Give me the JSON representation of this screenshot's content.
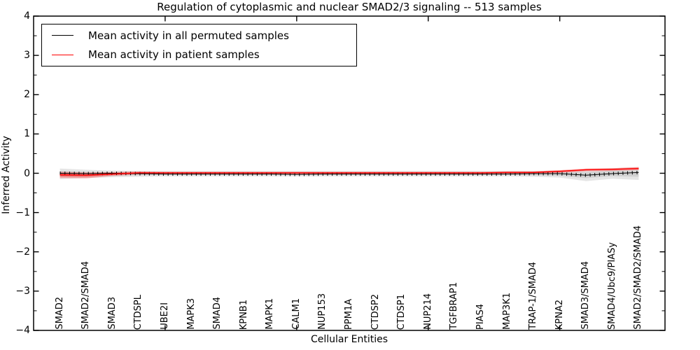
{
  "figure": {
    "background": "#ffffff"
  },
  "legend": {
    "entries": [
      {
        "label": "Mean activity in all permuted samples",
        "color": "#000000"
      },
      {
        "label": "Mean activity in patient samples",
        "color": "#ff0000"
      }
    ],
    "position": "upper left"
  },
  "chart_data": {
    "type": "line",
    "title": "Regulation of cytoplasmic and nuclear SMAD2/3 signaling -- 513 samples",
    "xlabel": "Cellular Entities",
    "ylabel": "Inferred Activity",
    "ylim": [
      -4,
      4
    ],
    "yticks": [
      4,
      3,
      2,
      1,
      0,
      -1,
      -2,
      -3,
      -4
    ],
    "ytick_labels": [
      "4",
      "3",
      "2",
      "1",
      "0",
      "−1",
      "−2",
      "−3",
      "−4"
    ],
    "y_minor_tick_step": 0.5,
    "x_major_tick_indices": [
      5,
      10,
      15,
      20
    ],
    "grid": false,
    "legend_position": "upper left",
    "categories": [
      "SMAD2",
      "SMAD2/SMAD4",
      "SMAD3",
      "CTDSPL",
      "UBE2I",
      "MAPK3",
      "SMAD4",
      "KPNB1",
      "MAPK1",
      "CALM1",
      "NUP153",
      "PPM1A",
      "CTDSP2",
      "CTDSP1",
      "NUP214",
      "TGFBRAP1",
      "PIAS4",
      "MAP3K1",
      "TRAP-1/SMAD4",
      "KPNA2",
      "SMAD3/SMAD4",
      "SMAD4/Ubc9/PIASy",
      "SMAD2/SMAD2/SMAD4"
    ],
    "series": [
      {
        "name": "Mean activity in all permuted samples",
        "color": "#000000",
        "values": [
          0,
          -0.01,
          0,
          -0.01,
          -0.02,
          -0.02,
          -0.02,
          -0.02,
          -0.02,
          -0.03,
          -0.02,
          -0.02,
          -0.02,
          -0.02,
          -0.02,
          -0.02,
          -0.02,
          -0.02,
          -0.01,
          -0.01,
          -0.05,
          -0.01,
          0.02
        ]
      },
      {
        "name": "Mean activity in patient samples",
        "color": "#ff0000",
        "values": [
          -0.04,
          -0.05,
          -0.02,
          0.01,
          0.01,
          0.01,
          0.01,
          0.01,
          0.01,
          0.01,
          0.01,
          0.01,
          0.01,
          0.01,
          0.01,
          0.01,
          0.01,
          0.02,
          0.02,
          0.05,
          0.09,
          0.1,
          0.12
        ]
      }
    ],
    "bands": [
      {
        "name": "permuted-sample-range",
        "color": "#999999",
        "opacity": 0.25,
        "upper": [
          0.12,
          0.09,
          0.07,
          0.06,
          0.06,
          0.06,
          0.06,
          0.06,
          0.06,
          0.06,
          0.06,
          0.06,
          0.06,
          0.06,
          0.06,
          0.06,
          0.06,
          0.06,
          0.06,
          0.07,
          0.1,
          0.13,
          0.15
        ],
        "lower": [
          -0.15,
          -0.12,
          -0.1,
          -0.09,
          -0.08,
          -0.08,
          -0.08,
          -0.08,
          -0.08,
          -0.08,
          -0.08,
          -0.08,
          -0.08,
          -0.08,
          -0.08,
          -0.08,
          -0.08,
          -0.08,
          -0.09,
          -0.11,
          -0.2,
          -0.14,
          -0.17
        ]
      },
      {
        "name": "patient-sample-range",
        "color": "#ff0000",
        "opacity": 0.27,
        "upper": [
          0.04,
          0.02,
          0.03,
          0.05,
          0.04,
          0.04,
          0.04,
          0.04,
          0.04,
          0.04,
          0.04,
          0.04,
          0.04,
          0.04,
          0.04,
          0.04,
          0.04,
          0.05,
          0.05,
          0.08,
          0.12,
          0.13,
          0.16
        ],
        "lower": [
          -0.12,
          -0.13,
          -0.07,
          -0.03,
          -0.02,
          -0.02,
          -0.02,
          -0.02,
          -0.02,
          -0.02,
          -0.02,
          -0.02,
          -0.02,
          -0.02,
          -0.02,
          -0.02,
          -0.02,
          -0.01,
          -0.01,
          0.01,
          0.05,
          0.06,
          0.08
        ]
      }
    ]
  }
}
